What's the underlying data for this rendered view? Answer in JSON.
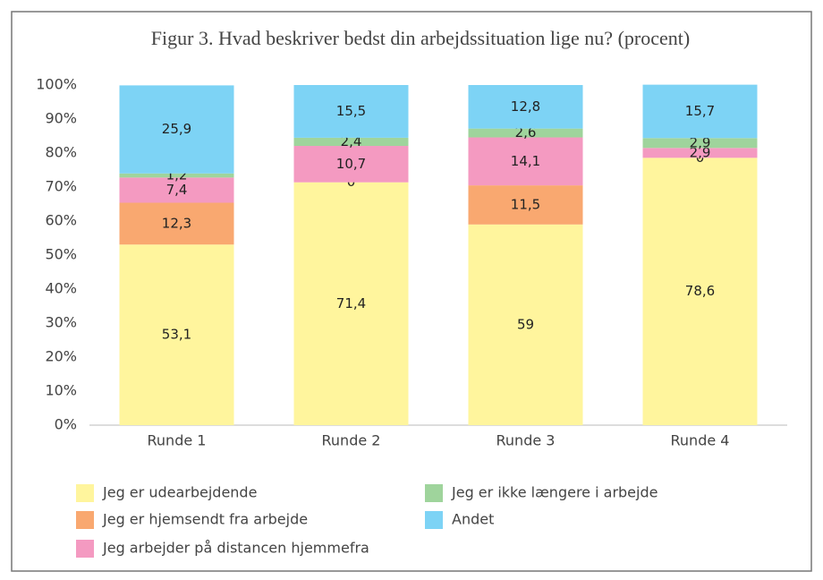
{
  "chart_data": {
    "type": "stacked_bar",
    "title": "Figur 3. Hvad beskriver bedst din arbejdssituation lige nu? (procent)",
    "categories": [
      "Runde 1",
      "Runde 2",
      "Runde 3",
      "Runde 4"
    ],
    "series": [
      {
        "name": "Jeg er udearbejdende",
        "color": "#fff59d",
        "values": [
          53.1,
          71.4,
          59,
          78.6
        ],
        "value_labels": [
          "53,1",
          "71,4",
          "59",
          "78,6"
        ]
      },
      {
        "name": "Jeg er hjemsendt fra arbejde",
        "color": "#f9a870",
        "values": [
          12.3,
          0,
          11.5,
          0
        ],
        "value_labels": [
          "12,3",
          "0",
          "11,5",
          "0"
        ]
      },
      {
        "name": "Jeg arbejder på distancen hjemmefra",
        "color": "#f49ac1",
        "values": [
          7.4,
          10.7,
          14.1,
          2.9
        ],
        "value_labels": [
          "7,4",
          "10,7",
          "14,1",
          "2,9"
        ]
      },
      {
        "name": "Jeg er ikke længere i arbejde",
        "color": "#9fd49c",
        "values": [
          1.2,
          2.4,
          2.6,
          2.9
        ],
        "value_labels": [
          "1,2",
          "2,4",
          "2,6",
          "2,9"
        ]
      },
      {
        "name": "Andet",
        "color": "#7dd3f5",
        "values": [
          25.9,
          15.5,
          12.8,
          15.7
        ],
        "value_labels": [
          "25,9",
          "15,5",
          "12,8",
          "15,7"
        ]
      }
    ],
    "ylim": [
      0,
      100
    ],
    "yticks": [
      {
        "value": 0,
        "label": "0%"
      },
      {
        "value": 10,
        "label": "10%"
      },
      {
        "value": 20,
        "label": "20%"
      },
      {
        "value": 30,
        "label": "30%"
      },
      {
        "value": 40,
        "label": "40%"
      },
      {
        "value": 50,
        "label": "50%"
      },
      {
        "value": 60,
        "label": "60%"
      },
      {
        "value": 70,
        "label": "70%"
      },
      {
        "value": 80,
        "label": "80%"
      },
      {
        "value": 90,
        "label": "90%"
      },
      {
        "value": 100,
        "label": "100%"
      }
    ],
    "legend": "bottom"
  }
}
